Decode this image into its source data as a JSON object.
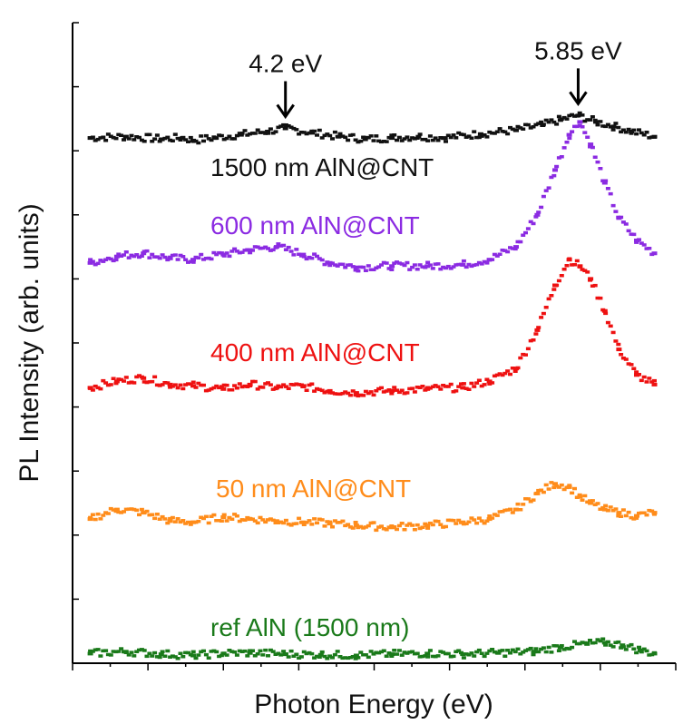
{
  "chart_data": {
    "type": "scatter",
    "title": "",
    "xlabel": "Photon Energy (eV)",
    "ylabel": "PL Intensity (arb. units)",
    "xlim": [
      3.0,
      6.4
    ],
    "ylim": [
      0,
      10
    ],
    "x_tick_labels_shown": false,
    "y_tick_labels_shown": false,
    "grid": false,
    "legend": "labels placed above each trace",
    "series": [
      {
        "name": "1500 nm AlN@CNT",
        "color": "#111111",
        "x": [
          3.1,
          3.3,
          3.5,
          3.62,
          3.68,
          3.8,
          3.95,
          4.1,
          4.2,
          4.35,
          4.5,
          4.65,
          4.8,
          4.95,
          5.1,
          5.3,
          5.5,
          5.65,
          5.75,
          5.85,
          5.95,
          6.05,
          6.15,
          6.28
        ],
        "y": [
          8.2,
          8.22,
          8.18,
          8.2,
          8.16,
          8.2,
          8.25,
          8.3,
          8.35,
          8.28,
          8.22,
          8.18,
          8.2,
          8.22,
          8.2,
          8.26,
          8.32,
          8.4,
          8.48,
          8.55,
          8.45,
          8.38,
          8.3,
          8.22
        ]
      },
      {
        "name": "600 nm AlN@CNT",
        "color": "#8b2be2",
        "x": [
          3.1,
          3.25,
          3.4,
          3.55,
          3.68,
          3.85,
          4.0,
          4.15,
          4.3,
          4.45,
          4.6,
          4.8,
          5.0,
          5.2,
          5.35,
          5.5,
          5.62,
          5.72,
          5.8,
          5.86,
          5.92,
          6.0,
          6.08,
          6.18,
          6.28
        ],
        "y": [
          6.25,
          6.35,
          6.4,
          6.32,
          6.3,
          6.38,
          6.45,
          6.5,
          6.38,
          6.25,
          6.18,
          6.2,
          6.2,
          6.22,
          6.3,
          6.5,
          7.0,
          7.7,
          8.25,
          8.45,
          8.1,
          7.5,
          6.95,
          6.6,
          6.4
        ]
      },
      {
        "name": "400 nm AlN@CNT",
        "color": "#ee1111",
        "x": [
          3.1,
          3.25,
          3.4,
          3.55,
          3.68,
          3.85,
          4.0,
          4.15,
          4.3,
          4.45,
          4.6,
          4.8,
          5.0,
          5.2,
          5.35,
          5.5,
          5.62,
          5.72,
          5.8,
          5.86,
          5.92,
          6.0,
          6.08,
          6.18,
          6.28
        ],
        "y": [
          4.3,
          4.4,
          4.45,
          4.35,
          4.33,
          4.28,
          4.35,
          4.3,
          4.32,
          4.25,
          4.22,
          4.25,
          4.28,
          4.3,
          4.4,
          4.6,
          5.2,
          5.9,
          6.3,
          6.2,
          6.0,
          5.5,
          4.9,
          4.5,
          4.35
        ]
      },
      {
        "name": "50 nm AlN@CNT",
        "color": "#ff8c1a",
        "x": [
          3.1,
          3.25,
          3.4,
          3.55,
          3.68,
          3.85,
          4.0,
          4.15,
          4.3,
          4.45,
          4.6,
          4.8,
          5.0,
          5.2,
          5.35,
          5.5,
          5.62,
          5.72,
          5.8,
          5.86,
          5.92,
          6.0,
          6.08,
          6.18,
          6.28
        ],
        "y": [
          2.25,
          2.4,
          2.35,
          2.22,
          2.2,
          2.28,
          2.25,
          2.22,
          2.2,
          2.18,
          2.15,
          2.12,
          2.15,
          2.2,
          2.25,
          2.4,
          2.65,
          2.8,
          2.75,
          2.6,
          2.5,
          2.4,
          2.35,
          2.3,
          2.35
        ]
      },
      {
        "name": "ref AlN (1500 nm)",
        "color": "#1a7a1a",
        "x": [
          3.1,
          3.3,
          3.5,
          3.68,
          3.85,
          4.0,
          4.2,
          4.4,
          4.6,
          4.8,
          5.0,
          5.2,
          5.4,
          5.6,
          5.75,
          5.9,
          6.0,
          6.1,
          6.2,
          6.28
        ],
        "y": [
          0.15,
          0.18,
          0.14,
          0.12,
          0.15,
          0.16,
          0.14,
          0.13,
          0.12,
          0.14,
          0.15,
          0.14,
          0.16,
          0.18,
          0.25,
          0.3,
          0.32,
          0.28,
          0.2,
          0.15
        ]
      }
    ],
    "annotations": [
      {
        "text": "4.2 eV",
        "x": 4.2,
        "y": 8.35
      },
      {
        "text": "5.85 eV",
        "x": 5.85,
        "y": 8.55
      }
    ]
  }
}
